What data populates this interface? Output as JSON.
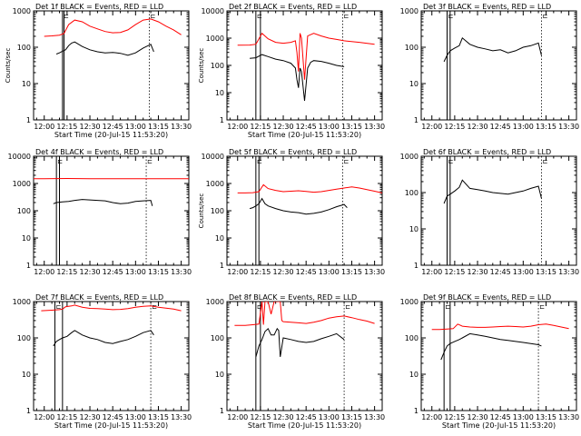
{
  "figure": {
    "background": "#ffffff",
    "axis_color": "#000000",
    "events_color": "#000000",
    "lld_color": "#ff0000"
  },
  "chart_data": [
    {
      "type": "line",
      "panel": 1,
      "title": "Det 1f BLACK = Events, RED = LLD",
      "xlabel": "Start Time (20-Jul-15 11:53:20)",
      "ylabel": "Counts/sec",
      "xscale": "time",
      "xlim": [
        "11:53",
        "13:35"
      ],
      "xticks": [
        "12:00",
        "12:15",
        "12:30",
        "12:45",
        "13:00",
        "13:15",
        "13:30"
      ],
      "yscale": "log",
      "ylim": [
        1,
        1000
      ],
      "yticks": [
        "1",
        "10",
        "100",
        "1000"
      ],
      "markers": [
        "12:12",
        "12:13",
        "13:09"
      ],
      "series": [
        {
          "name": "Events",
          "color": "#000000",
          "x": [
            "12:08",
            "12:10",
            "12:12",
            "12:14",
            "12:16",
            "12:18",
            "12:20",
            "12:25",
            "12:30",
            "12:35",
            "12:40",
            "12:45",
            "12:50",
            "12:55",
            "13:00",
            "13:05",
            "13:10",
            "13:12"
          ],
          "y": [
            65,
            70,
            78,
            85,
            110,
            130,
            140,
            105,
            85,
            75,
            70,
            72,
            68,
            60,
            70,
            95,
            120,
            75
          ]
        },
        {
          "name": "LLD",
          "color": "#ff0000",
          "x": [
            "12:00",
            "12:05",
            "12:10",
            "12:13",
            "12:16",
            "12:20",
            "12:25",
            "12:30",
            "12:35",
            "12:40",
            "12:45",
            "12:50",
            "12:55",
            "13:00",
            "13:05",
            "13:10",
            "13:15",
            "13:20",
            "13:25",
            "13:30"
          ],
          "y": [
            200,
            205,
            215,
            240,
            420,
            560,
            500,
            380,
            320,
            270,
            250,
            255,
            300,
            420,
            560,
            600,
            500,
            380,
            300,
            220
          ]
        }
      ]
    },
    {
      "type": "line",
      "panel": 2,
      "title": "Det 2f BLACK = Events, RED = LLD",
      "xlabel": "Start Time (20-Jul-15 11:53:20)",
      "ylabel": "Counts/sec",
      "xscale": "time",
      "xlim": [
        "11:53",
        "13:35"
      ],
      "xticks": [
        "12:00",
        "12:15",
        "12:30",
        "12:45",
        "13:00",
        "13:15",
        "13:30"
      ],
      "yscale": "log",
      "ylim": [
        1,
        10000
      ],
      "yticks": [
        "1",
        "10",
        "100",
        "1000",
        "10000"
      ],
      "markers": [
        "12:12",
        "12:15",
        "13:09"
      ],
      "series": [
        {
          "name": "Events",
          "color": "#000000",
          "x": [
            "12:08",
            "12:12",
            "12:16",
            "12:20",
            "12:25",
            "12:30",
            "12:35",
            "12:38",
            "12:39",
            "12:40",
            "12:41",
            "12:42",
            "12:44",
            "12:46",
            "12:48",
            "12:50",
            "12:55",
            "13:00",
            "13:05",
            "13:10"
          ],
          "y": [
            180,
            190,
            250,
            210,
            170,
            150,
            120,
            80,
            30,
            15,
            80,
            60,
            5,
            80,
            130,
            150,
            140,
            120,
            100,
            90
          ]
        },
        {
          "name": "LLD",
          "color": "#ff0000",
          "x": [
            "12:00",
            "12:08",
            "12:12",
            "12:16",
            "12:20",
            "12:25",
            "12:30",
            "12:35",
            "12:38",
            "12:39",
            "12:40",
            "12:41",
            "12:42",
            "12:44",
            "12:46",
            "12:50",
            "12:55",
            "13:00",
            "13:05",
            "13:10",
            "13:20",
            "13:30"
          ],
          "y": [
            550,
            560,
            600,
            1500,
            950,
            700,
            650,
            700,
            800,
            300,
            60,
            1500,
            1000,
            30,
            1200,
            1500,
            1200,
            1000,
            900,
            800,
            700,
            600
          ]
        }
      ]
    },
    {
      "type": "line",
      "panel": 3,
      "title": "Det 3f BLACK = Events, RED = LLD",
      "xlabel": "",
      "ylabel": "",
      "xscale": "time",
      "xlim": [
        "11:53",
        "13:35"
      ],
      "xticks": [
        "12:00",
        "12:15",
        "12:30",
        "12:45",
        "13:00",
        "13:15",
        "13:30"
      ],
      "yscale": "log",
      "ylim": [
        1,
        1000
      ],
      "yticks": [
        "1",
        "10",
        "100",
        "1000"
      ],
      "markers": [
        "12:10",
        "12:12",
        "13:12"
      ],
      "series": [
        {
          "name": "Events",
          "color": "#000000",
          "x": [
            "12:08",
            "12:10",
            "12:12",
            "12:15",
            "12:18",
            "12:20",
            "12:25",
            "12:30",
            "12:35",
            "12:40",
            "12:45",
            "12:50",
            "12:55",
            "13:00",
            "13:05",
            "13:10",
            "13:12"
          ],
          "y": [
            40,
            60,
            80,
            95,
            110,
            180,
            120,
            100,
            90,
            80,
            85,
            70,
            80,
            100,
            110,
            130,
            60
          ]
        }
      ]
    },
    {
      "type": "line",
      "panel": 4,
      "title": "Det 4f BLACK = Events, RED = LLD",
      "xlabel": "",
      "ylabel": "",
      "xscale": "time",
      "xlim": [
        "11:53",
        "13:35"
      ],
      "xticks": [
        "12:00",
        "12:15",
        "12:30",
        "12:45",
        "13:00",
        "13:15",
        "13:30"
      ],
      "yscale": "log",
      "ylim": [
        1,
        10000
      ],
      "yticks": [
        "1",
        "10",
        "100",
        "1000",
        "10000"
      ],
      "markers": [
        "12:08",
        "12:10",
        "13:07"
      ],
      "series": [
        {
          "name": "Events",
          "color": "#000000",
          "x": [
            "12:06",
            "12:08",
            "12:12",
            "12:16",
            "12:20",
            "12:25",
            "12:30",
            "12:35",
            "12:40",
            "12:45",
            "12:50",
            "12:55",
            "13:00",
            "13:05",
            "13:10",
            "13:11"
          ],
          "y": [
            180,
            200,
            210,
            220,
            240,
            260,
            250,
            240,
            230,
            200,
            180,
            190,
            220,
            230,
            240,
            150
          ]
        },
        {
          "name": "LLD",
          "color": "#ff0000",
          "x": [
            "11:53",
            "12:00",
            "12:15",
            "12:30",
            "12:45",
            "13:00",
            "13:15",
            "13:30",
            "13:35"
          ],
          "y": [
            1500,
            1500,
            1520,
            1500,
            1500,
            1500,
            1500,
            1500,
            1500
          ]
        }
      ]
    },
    {
      "type": "line",
      "panel": 5,
      "title": "Det 5f BLACK = Events, RED = LLD",
      "xlabel": "",
      "ylabel": "Counts/sec",
      "xscale": "time",
      "xlim": [
        "11:53",
        "13:35"
      ],
      "xticks": [
        "12:00",
        "12:15",
        "12:30",
        "12:45",
        "13:00",
        "13:15",
        "13:30"
      ],
      "yscale": "log",
      "ylim": [
        1,
        10000
      ],
      "yticks": [
        "1",
        "10",
        "100",
        "1000",
        "10000"
      ],
      "markers": [
        "12:12",
        "12:14",
        "13:09"
      ],
      "series": [
        {
          "name": "Events",
          "color": "#000000",
          "x": [
            "12:08",
            "12:10",
            "12:12",
            "12:14",
            "12:16",
            "12:18",
            "12:20",
            "12:25",
            "12:30",
            "12:35",
            "12:40",
            "12:45",
            "12:50",
            "12:55",
            "13:00",
            "13:05",
            "13:10",
            "13:12"
          ],
          "y": [
            120,
            130,
            150,
            180,
            280,
            180,
            150,
            120,
            100,
            90,
            85,
            75,
            80,
            90,
            110,
            140,
            170,
            130
          ]
        },
        {
          "name": "LLD",
          "color": "#ff0000",
          "x": [
            "12:00",
            "12:05",
            "12:10",
            "12:14",
            "12:17",
            "12:20",
            "12:25",
            "12:30",
            "12:35",
            "12:40",
            "12:45",
            "12:50",
            "12:55",
            "13:00",
            "13:05",
            "13:10",
            "13:15",
            "13:20",
            "13:25",
            "13:30",
            "13:35"
          ],
          "y": [
            450,
            450,
            460,
            500,
            900,
            650,
            560,
            500,
            520,
            540,
            510,
            480,
            500,
            560,
            620,
            680,
            750,
            680,
            600,
            520,
            450
          ]
        }
      ]
    },
    {
      "type": "line",
      "panel": 6,
      "title": "Det 6f BLACK = Events, RED = LLD",
      "xlabel": "",
      "ylabel": "",
      "xscale": "time",
      "xlim": [
        "11:53",
        "13:35"
      ],
      "xticks": [
        "12:00",
        "12:15",
        "12:30",
        "12:45",
        "13:00",
        "13:15",
        "13:30"
      ],
      "yscale": "log",
      "ylim": [
        1,
        1000
      ],
      "yticks": [
        "1",
        "10",
        "100",
        "1000"
      ],
      "markers": [
        "12:10",
        "12:12",
        "13:12"
      ],
      "series": [
        {
          "name": "Events",
          "color": "#000000",
          "x": [
            "12:08",
            "12:10",
            "12:12",
            "12:15",
            "12:18",
            "12:20",
            "12:25",
            "12:30",
            "12:35",
            "12:40",
            "12:45",
            "12:50",
            "12:55",
            "13:00",
            "13:05",
            "13:10",
            "13:12"
          ],
          "y": [
            50,
            80,
            90,
            110,
            140,
            220,
            130,
            120,
            110,
            100,
            95,
            90,
            100,
            110,
            130,
            150,
            70
          ]
        }
      ]
    },
    {
      "type": "line",
      "panel": 7,
      "title": "Det 7f BLACK = Events, RED = LLD",
      "xlabel": "Start Time (20-Jul-15 11:53:20)",
      "ylabel": "",
      "xscale": "time",
      "xlim": [
        "11:53",
        "13:35"
      ],
      "xticks": [
        "12:00",
        "12:15",
        "12:30",
        "12:45",
        "13:00",
        "13:15",
        "13:30"
      ],
      "yscale": "log",
      "ylim": [
        1,
        1000
      ],
      "yticks": [
        "1",
        "10",
        "100",
        "1000"
      ],
      "markers": [
        "12:07",
        "12:12",
        "13:10"
      ],
      "series": [
        {
          "name": "Events",
          "color": "#000000",
          "x": [
            "12:06",
            "12:08",
            "12:10",
            "12:12",
            "12:15",
            "12:18",
            "12:20",
            "12:25",
            "12:30",
            "12:35",
            "12:40",
            "12:45",
            "12:50",
            "12:55",
            "13:00",
            "13:05",
            "13:10",
            "13:12"
          ],
          "y": [
            60,
            80,
            90,
            100,
            110,
            140,
            160,
            120,
            100,
            90,
            75,
            70,
            80,
            90,
            110,
            140,
            160,
            120
          ]
        },
        {
          "name": "LLD",
          "color": "#ff0000",
          "x": [
            "11:58",
            "12:05",
            "12:10",
            "12:12",
            "12:14",
            "12:18",
            "12:20",
            "12:25",
            "12:30",
            "12:35",
            "12:40",
            "12:45",
            "12:50",
            "12:55",
            "13:00",
            "13:05",
            "13:10",
            "13:15",
            "13:20",
            "13:25",
            "13:30"
          ],
          "y": [
            560,
            580,
            600,
            620,
            720,
            760,
            800,
            700,
            650,
            640,
            620,
            600,
            610,
            640,
            700,
            740,
            760,
            700,
            660,
            620,
            560
          ]
        }
      ]
    },
    {
      "type": "line",
      "panel": 8,
      "title": "Det 8f BLACK = Events, RED = LLD",
      "xlabel": "Start Time (20-Jul-15 11:53:20)",
      "ylabel": "",
      "xscale": "time",
      "xlim": [
        "11:53",
        "13:35"
      ],
      "xticks": [
        "12:00",
        "12:15",
        "12:30",
        "12:45",
        "13:00",
        "13:15",
        "13:30"
      ],
      "yscale": "log",
      "ylim": [
        1,
        1000
      ],
      "yticks": [
        "1",
        "10",
        "100",
        "1000"
      ],
      "markers": [
        "12:12",
        "12:15",
        "13:10"
      ],
      "series": [
        {
          "name": "Events",
          "color": "#000000",
          "x": [
            "12:12",
            "12:14",
            "12:16",
            "12:18",
            "12:20",
            "12:22",
            "12:24",
            "12:26",
            "12:27",
            "12:28",
            "12:30",
            "12:35",
            "12:40",
            "12:45",
            "12:50",
            "12:55",
            "13:00",
            "13:05",
            "13:10"
          ],
          "y": [
            30,
            60,
            90,
            150,
            180,
            120,
            120,
            180,
            160,
            30,
            100,
            90,
            80,
            75,
            80,
            95,
            110,
            130,
            90
          ]
        },
        {
          "name": "LLD",
          "color": "#ff0000",
          "x": [
            "11:58",
            "12:05",
            "12:10",
            "12:14",
            "12:16",
            "12:17",
            "12:18",
            "12:20",
            "12:22",
            "12:24",
            "12:26",
            "12:28",
            "12:29",
            "12:30",
            "12:35",
            "12:40",
            "12:45",
            "12:50",
            "12:55",
            "13:00",
            "13:05",
            "13:10",
            "13:15",
            "13:20",
            "13:25",
            "13:30"
          ],
          "y": [
            220,
            220,
            230,
            240,
            1000,
            230,
            1000,
            1000,
            450,
            1000,
            1000,
            1000,
            300,
            280,
            270,
            260,
            250,
            270,
            300,
            350,
            380,
            400,
            360,
            320,
            290,
            250
          ]
        }
      ]
    },
    {
      "type": "line",
      "panel": 9,
      "title": "Det 9f BLACK = Events, RED = LLD",
      "xlabel": "Start Time (20-Jul-15 11:53:20)",
      "ylabel": "",
      "xscale": "time",
      "xlim": [
        "11:53",
        "13:35"
      ],
      "xticks": [
        "12:00",
        "12:15",
        "12:30",
        "12:45",
        "13:00",
        "13:15",
        "13:30"
      ],
      "yscale": "log",
      "ylim": [
        1,
        1000
      ],
      "yticks": [
        "1",
        "10",
        "100",
        "1000"
      ],
      "markers": [
        "12:08",
        "12:12",
        "13:10"
      ],
      "series": [
        {
          "name": "Events",
          "color": "#000000",
          "x": [
            "12:06",
            "12:08",
            "12:10",
            "12:12",
            "12:15",
            "12:18",
            "12:20",
            "12:25",
            "12:30",
            "12:35",
            "12:40",
            "12:45",
            "12:50",
            "12:55",
            "13:00",
            "13:05",
            "13:10",
            "13:12"
          ],
          "y": [
            25,
            40,
            60,
            70,
            80,
            90,
            100,
            130,
            120,
            110,
            100,
            90,
            85,
            80,
            75,
            70,
            65,
            60
          ]
        },
        {
          "name": "LLD",
          "color": "#ff0000",
          "x": [
            "12:00",
            "12:05",
            "12:10",
            "12:14",
            "12:17",
            "12:20",
            "12:25",
            "12:30",
            "12:35",
            "12:40",
            "12:45",
            "12:50",
            "12:55",
            "13:00",
            "13:05",
            "13:10",
            "13:15",
            "13:20",
            "13:25",
            "13:30"
          ],
          "y": [
            170,
            170,
            175,
            180,
            240,
            210,
            200,
            195,
            195,
            200,
            205,
            210,
            205,
            200,
            210,
            230,
            240,
            220,
            200,
            180
          ]
        }
      ]
    }
  ]
}
